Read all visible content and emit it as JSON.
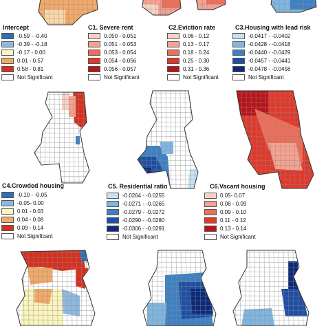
{
  "panels": [
    {
      "id": "intercept",
      "title": "Intercept",
      "legend": [
        {
          "label": "-0.59 - -0.40",
          "color": "#2f6fb5"
        },
        {
          "label": "-0.39 - -0.18",
          "color": "#8fb8de"
        },
        {
          "label": "-0.17 - 0.00",
          "color": "#fbf5bd"
        },
        {
          "label": "0.01 - 0.57",
          "color": "#f2a968"
        },
        {
          "label": "0.58 - 0.81",
          "color": "#d7301f"
        },
        {
          "label": "Not Significant",
          "color": "#ffffff"
        }
      ]
    },
    {
      "id": "c1",
      "title": "C1. Severe rent",
      "legend": [
        {
          "label": "0.050 - 0.051",
          "color": "#fbd1c6"
        },
        {
          "label": "0.051 - 0.053",
          "color": "#f5a190"
        },
        {
          "label": "0.053 - 0.054",
          "color": "#ee6e59"
        },
        {
          "label": "0.054 - 0.056",
          "color": "#e0392b"
        },
        {
          "label": "0.056 - 0.057",
          "color": "#b9131a"
        },
        {
          "label": "Not Significant",
          "color": "#ffffff"
        }
      ]
    },
    {
      "id": "c2",
      "title": "C2.Eviction rate",
      "legend": [
        {
          "label": "0.06 - 0.12",
          "color": "#fbd1c6"
        },
        {
          "label": "0.13 - 0.17",
          "color": "#f5a190"
        },
        {
          "label": "0.18 - 0.24",
          "color": "#ee6e59"
        },
        {
          "label": "0.25 - 0.30",
          "color": "#e0392b"
        },
        {
          "label": "0.31 - 0.36",
          "color": "#b9131a"
        },
        {
          "label": "Not Significant",
          "color": "#ffffff"
        }
      ]
    },
    {
      "id": "c3",
      "title": "C3.Housing with lead risk",
      "legend": [
        {
          "label": "-0.0417 - -0.0402",
          "color": "#c6e2f3"
        },
        {
          "label": "-0.0428 - -0.0418",
          "color": "#7fb6e0"
        },
        {
          "label": "-0.0440 - -0.0429",
          "color": "#3e80c4"
        },
        {
          "label": "-0.0457 - -0.0441",
          "color": "#1f4ea3"
        },
        {
          "label": "-0.0478 - -0.0458",
          "color": "#0d2a7a"
        },
        {
          "label": "Not Significant",
          "color": "#ffffff"
        }
      ]
    },
    {
      "id": "c4",
      "title": "C4.Crowded housing",
      "legend": [
        {
          "label": "-0.10 - -0.05",
          "color": "#2f6fb5"
        },
        {
          "label": "-0.05- 0.00",
          "color": "#8fb8de"
        },
        {
          "label": "0.01 - 0.03",
          "color": "#fbf5bd"
        },
        {
          "label": "0.04 - 0.08",
          "color": "#f2a968"
        },
        {
          "label": "0.09 - 0.14",
          "color": "#d7301f"
        },
        {
          "label": "Not Significant",
          "color": "#ffffff"
        }
      ]
    },
    {
      "id": "c5",
      "title": "C5. Residential ratio",
      "legend": [
        {
          "label": "-0.0264 - -0.0255",
          "color": "#c6e2f3"
        },
        {
          "label": "-0.0271 - -0.0265",
          "color": "#7fb6e0"
        },
        {
          "label": "-0.0279 - -0.0272",
          "color": "#3e80c4"
        },
        {
          "label": "-0.0290 - -0.0280",
          "color": "#1f4ea3"
        },
        {
          "label": "-0.0306 - -0.0291",
          "color": "#0d2a7a"
        },
        {
          "label": "Not Significant",
          "color": "#ffffff"
        }
      ]
    },
    {
      "id": "c6",
      "title": "C6.Vacant housing",
      "legend": [
        {
          "label": "0.05- 0.07",
          "color": "#fbd1c6"
        },
        {
          "label": "0.08 - 0.09",
          "color": "#f5a190"
        },
        {
          "label": "0.09 - 0.10",
          "color": "#ee6e59"
        },
        {
          "label": "0.11 - 0.12",
          "color": "#e0392b"
        },
        {
          "label": "0.13 - 0.14",
          "color": "#b9131a"
        },
        {
          "label": "Not Significant",
          "color": "#ffffff"
        }
      ]
    }
  ],
  "map_style": {
    "outline": "#333333",
    "grid": "#8c8c8c",
    "background": "#ffffff"
  }
}
